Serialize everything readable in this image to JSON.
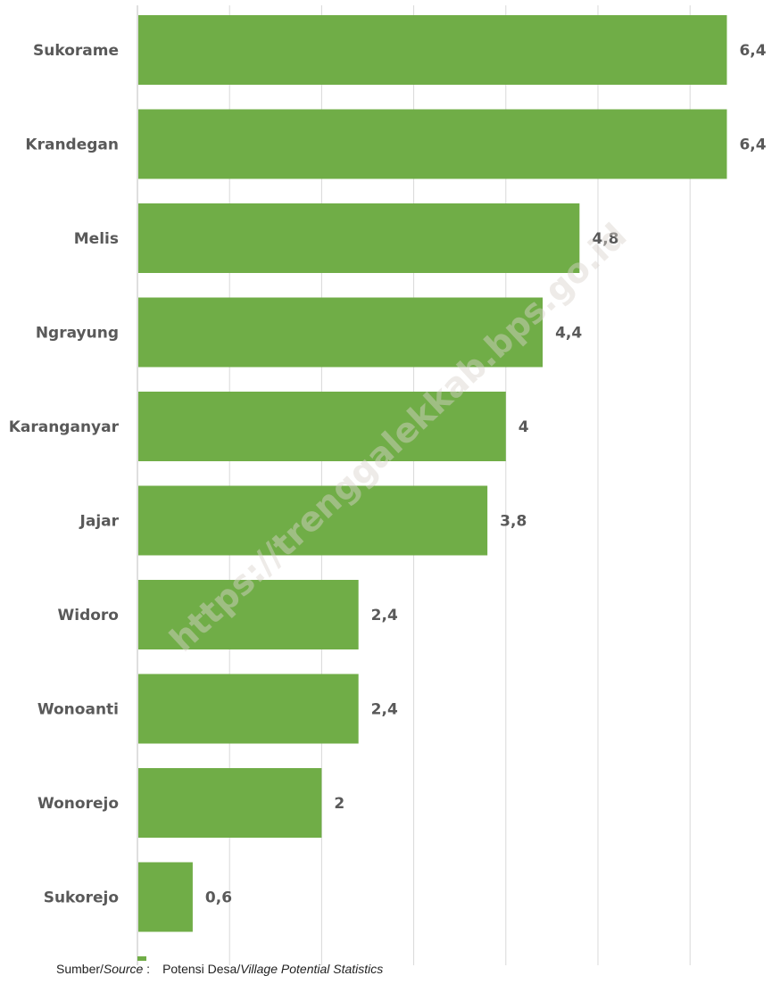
{
  "chart_data": {
    "type": "bar",
    "orientation": "horizontal",
    "categories": [
      "Sukorame",
      "Krandegan",
      "Melis",
      "Ngrayung",
      "Karanganyar",
      "Jajar",
      "Widoro",
      "Wonoanti",
      "Wonorejo",
      "Sukorejo"
    ],
    "values": [
      6.4,
      6.4,
      4.8,
      4.4,
      4,
      3.8,
      2.4,
      2.4,
      2,
      0.6
    ],
    "value_labels": [
      "6,4",
      "6,4",
      "4,8",
      "4,4",
      "4",
      "3,8",
      "2,4",
      "2,4",
      "2",
      "0,6"
    ],
    "xlim": [
      0,
      7
    ],
    "x_gridlines": [
      0,
      1,
      2,
      3,
      4,
      5,
      6,
      7
    ],
    "grid": true,
    "bar_color": "#70ad47"
  },
  "watermark": "https://trenggalekkab.bps.go.id",
  "source": {
    "label_normal": "Sumber/",
    "label_italic": "Source",
    "label_colon": " :",
    "text_normal": "Potensi Desa/",
    "text_italic": "Village Potential Statistics"
  }
}
